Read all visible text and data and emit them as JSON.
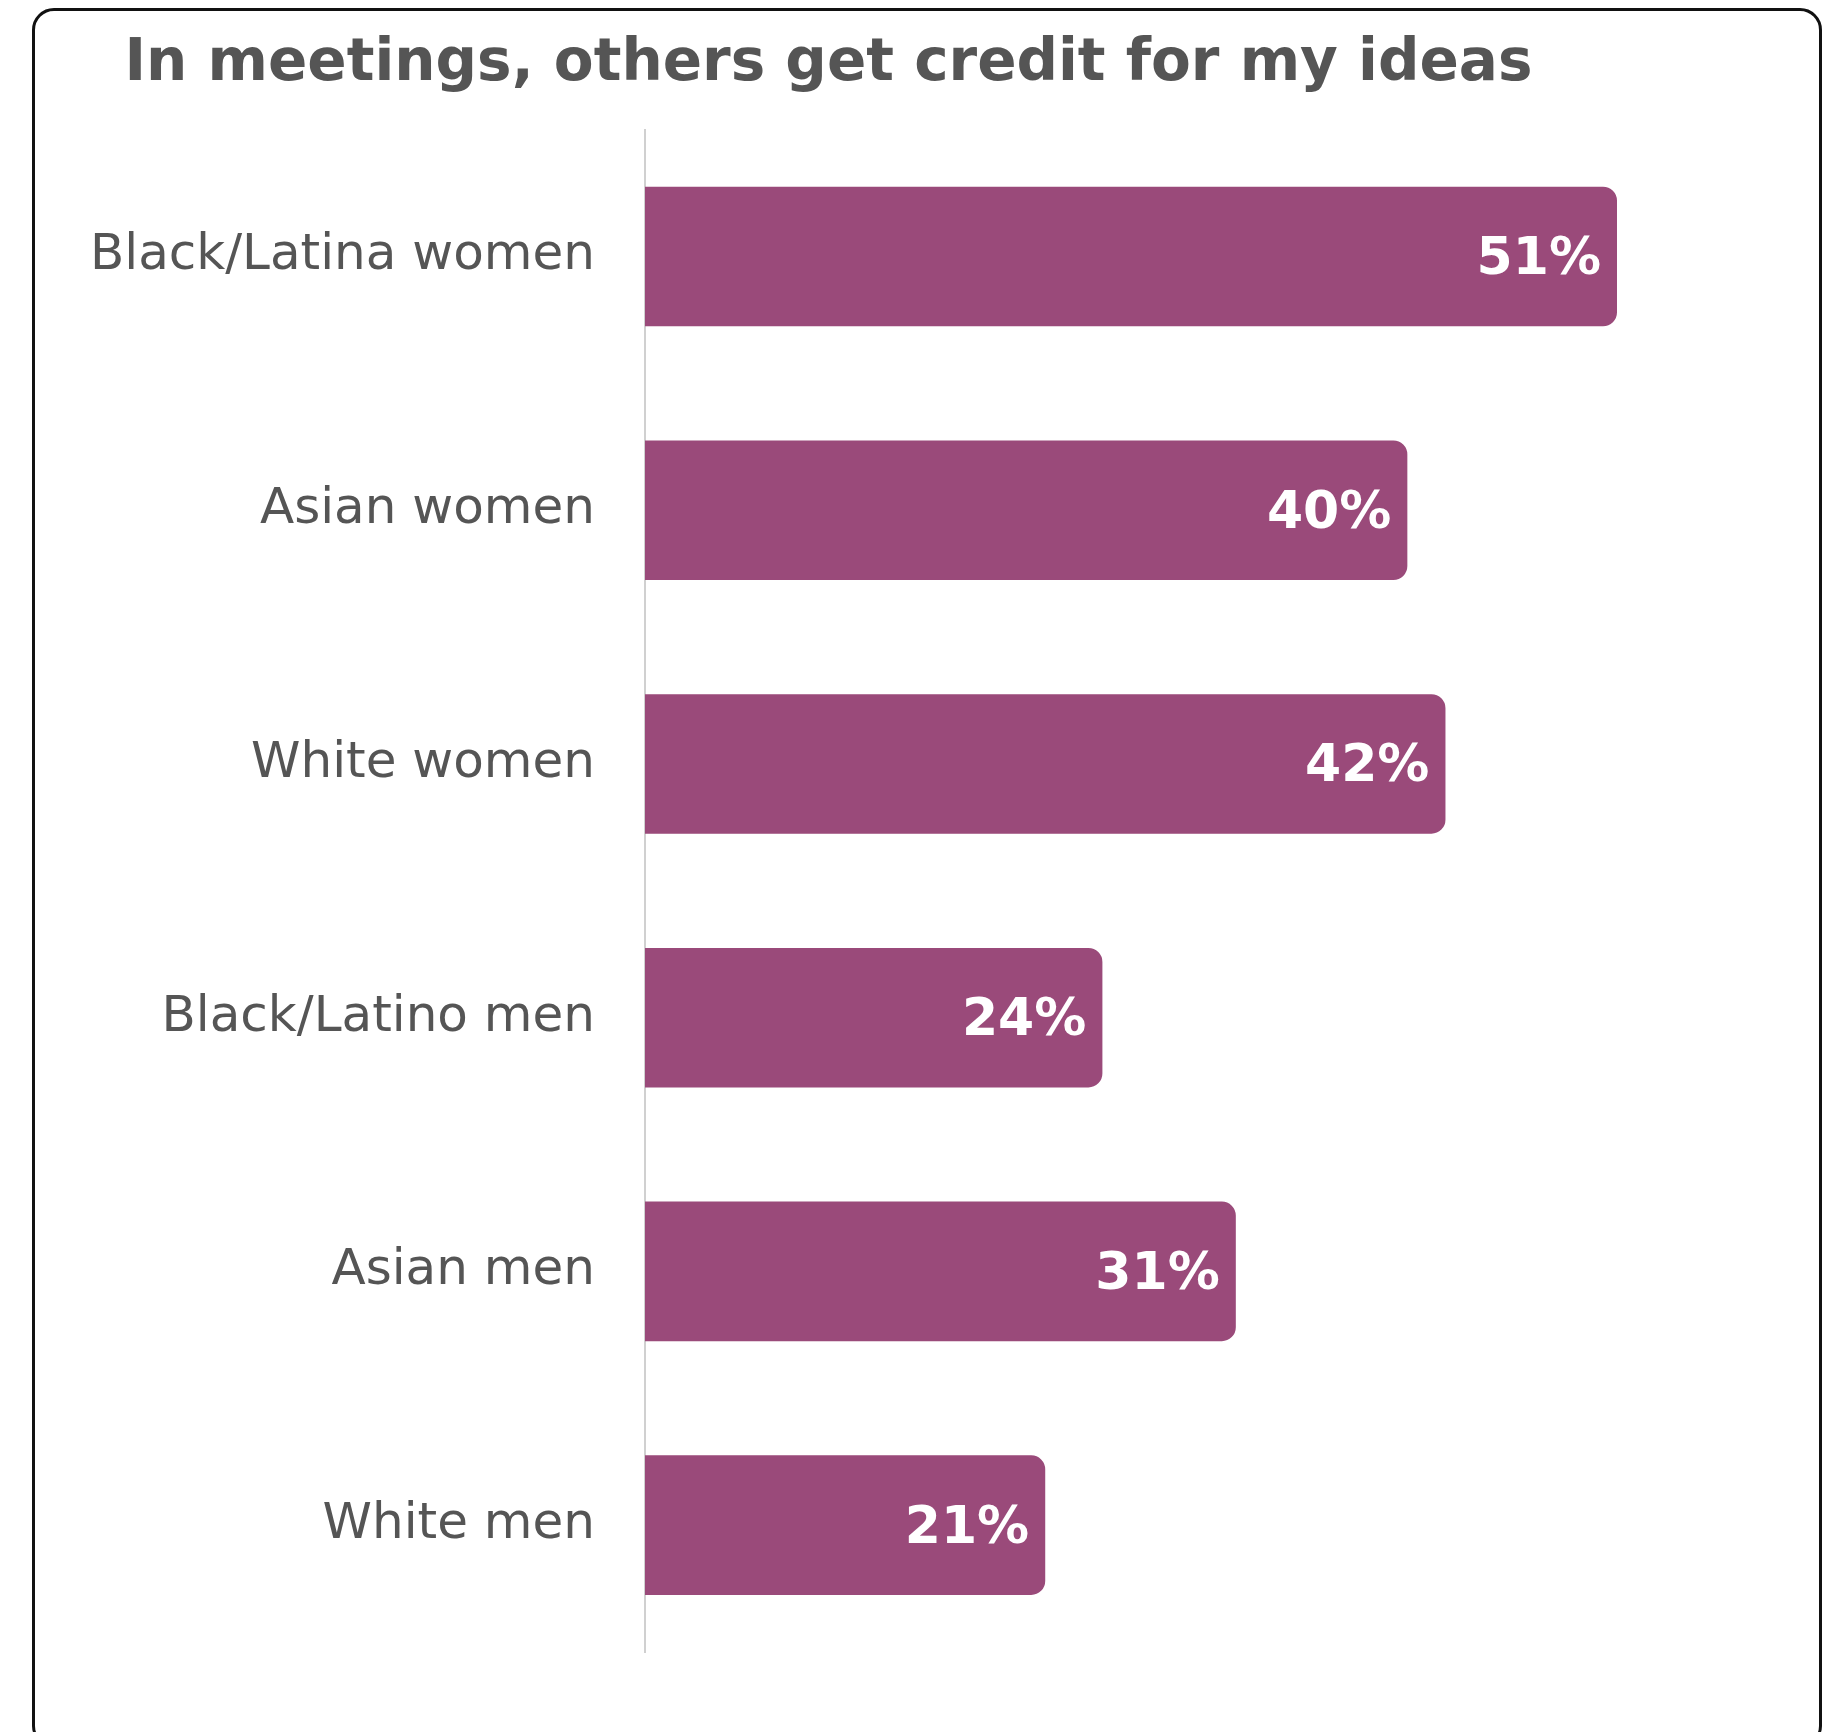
{
  "chart_data": {
    "type": "bar",
    "orientation": "horizontal",
    "title": "In meetings, others get credit for my ideas",
    "categories": [
      "Black/Latina women",
      "Asian women",
      "White women",
      "Black/Latino men",
      "Asian men",
      "White men"
    ],
    "values": [
      51,
      40,
      42,
      24,
      31,
      21
    ],
    "value_labels": [
      "51%",
      "40%",
      "42%",
      "24%",
      "31%",
      "21%"
    ],
    "color": "#9a4a7a",
    "tick_labels": "y",
    "grid": false,
    "legend": false
  }
}
